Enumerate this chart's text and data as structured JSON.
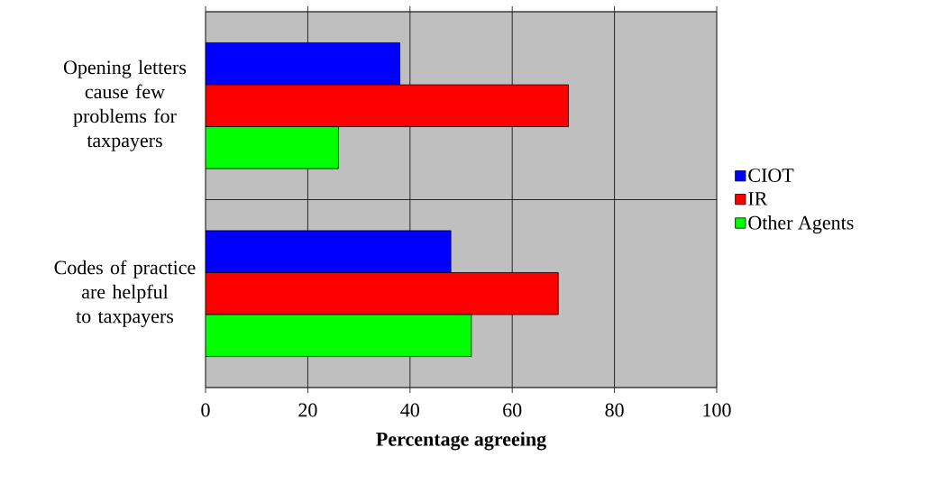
{
  "chart_data": {
    "type": "bar",
    "orientation": "horizontal",
    "categories": [
      "Opening letters cause few problems for taxpayers",
      "Codes of practice are helpful to taxpayers"
    ],
    "series": [
      {
        "name": "CIOT",
        "color": "#0000ff",
        "values": [
          38,
          48
        ]
      },
      {
        "name": "IR",
        "color": "#ff0000",
        "values": [
          71,
          69
        ]
      },
      {
        "name": "Other Agents",
        "color": "#00ff00",
        "values": [
          26,
          52
        ]
      }
    ],
    "xlabel": "Percentage agreeing",
    "xlim": [
      0,
      100
    ],
    "xticks": [
      0,
      20,
      40,
      60,
      80,
      100
    ],
    "grid": "x",
    "legend": "right"
  }
}
